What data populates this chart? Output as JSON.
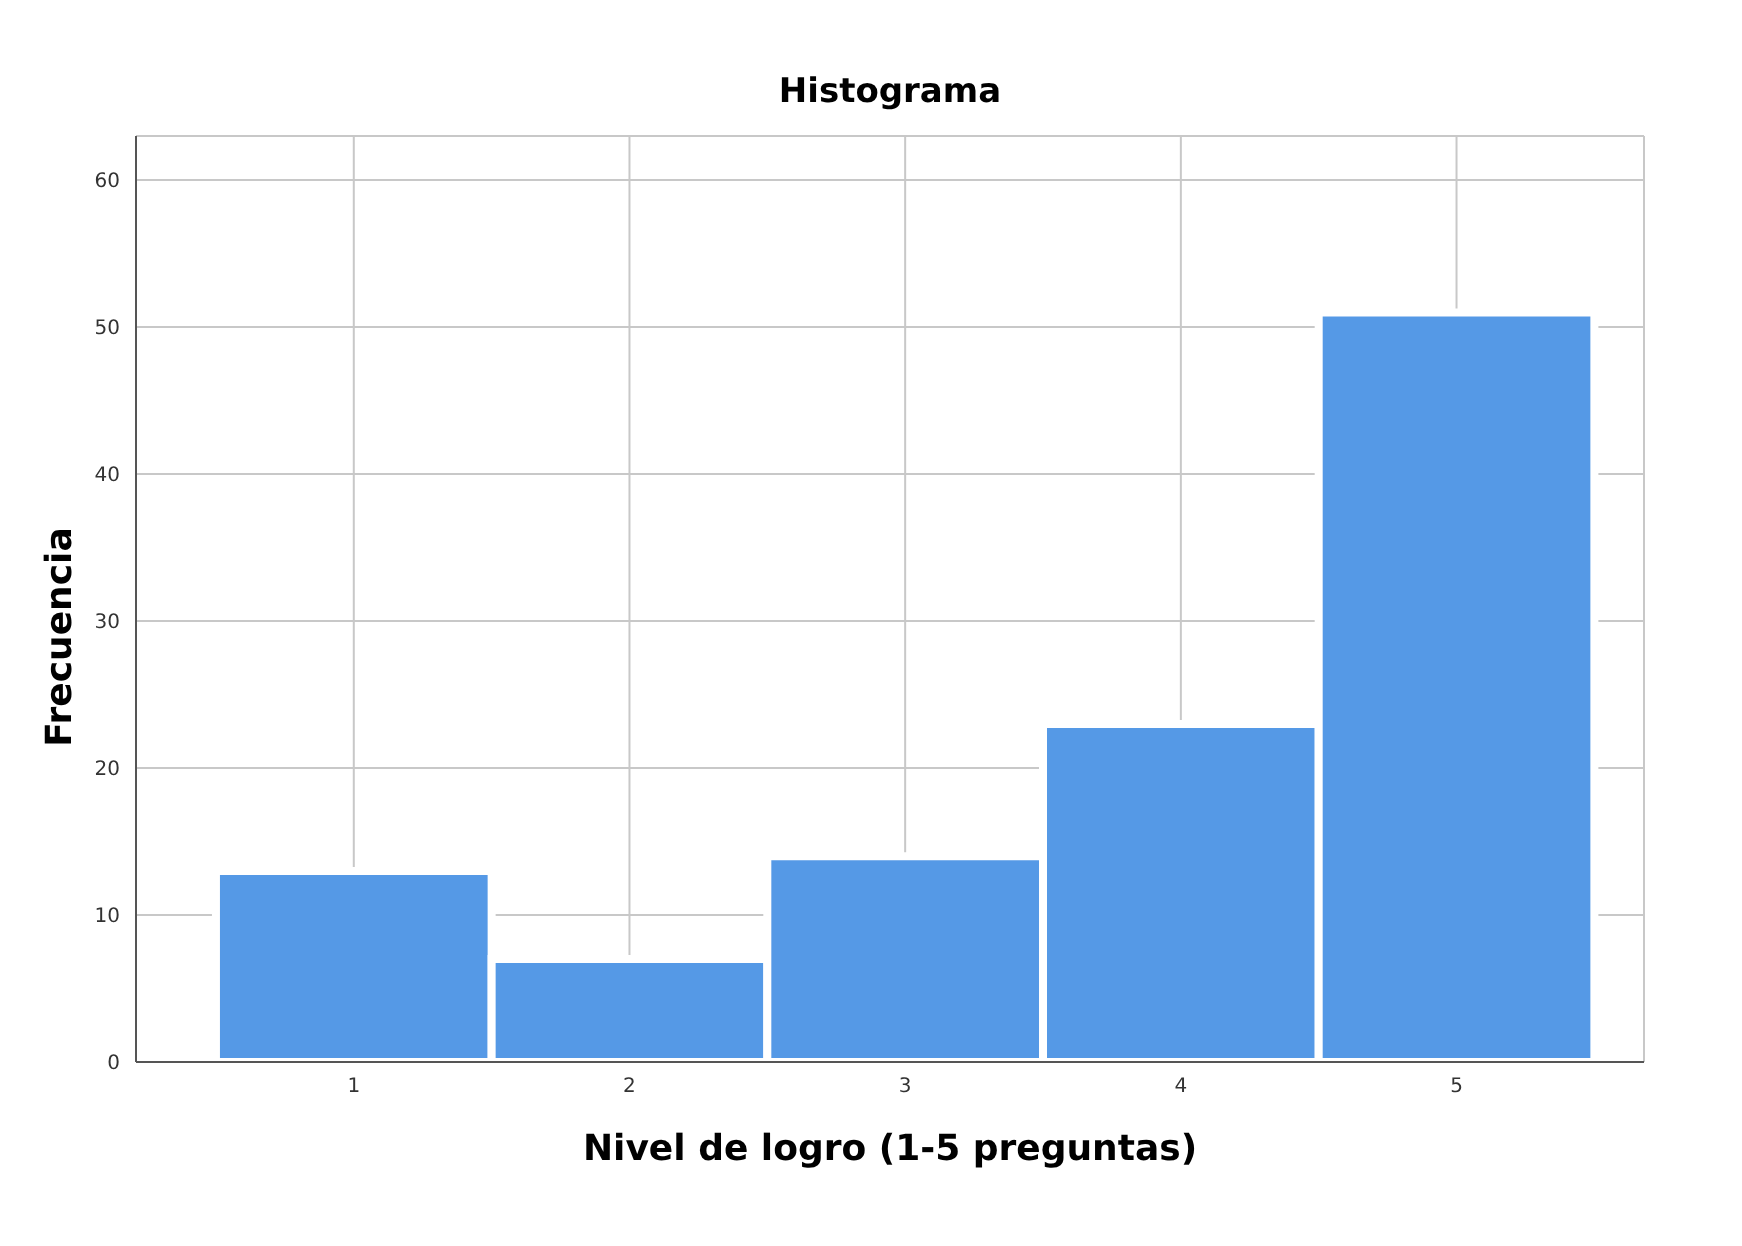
{
  "chart_data": {
    "type": "histogram",
    "title": "Histograma",
    "xlabel": "Nivel de logro (1-5 preguntas)",
    "ylabel": "Frecuencia",
    "bins": [
      0.5,
      1.5,
      2.5,
      3.5,
      4.5,
      5.5
    ],
    "values": [
      13,
      7,
      14,
      23,
      51
    ],
    "color": "#5599e6",
    "xlim": [
      0.21,
      5.68
    ],
    "xticks": [
      1,
      2,
      3,
      4,
      5
    ],
    "ylim": [
      0,
      63
    ],
    "yticks": [
      0,
      10,
      20,
      30,
      40,
      50,
      60
    ],
    "grid": true
  }
}
